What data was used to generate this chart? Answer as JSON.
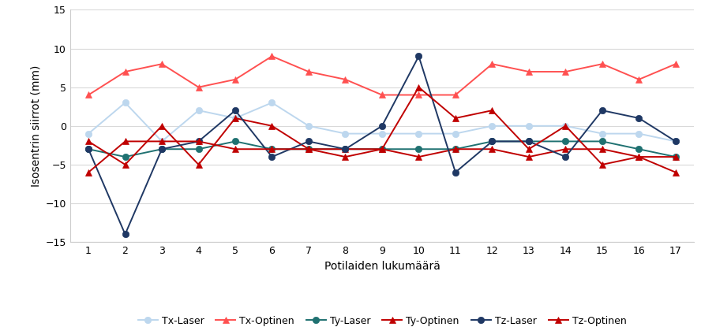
{
  "x": [
    1,
    2,
    3,
    4,
    5,
    6,
    7,
    8,
    9,
    10,
    11,
    12,
    13,
    14,
    15,
    16,
    17
  ],
  "Tx_Laser": [
    -1,
    3,
    -2,
    2,
    1,
    3,
    0,
    -1,
    -1,
    -1,
    -1,
    0,
    0,
    0,
    -1,
    -1,
    -2
  ],
  "Tx_Optinen": [
    4,
    7,
    8,
    5,
    6,
    9,
    7,
    6,
    4,
    4,
    4,
    8,
    7,
    7,
    8,
    6,
    8
  ],
  "Ty_Laser": [
    -3,
    -4,
    -3,
    -3,
    -2,
    -3,
    -3,
    -3,
    -3,
    -3,
    -3,
    -2,
    -2,
    -2,
    -2,
    -3,
    -4
  ],
  "Ty_Optinen": [
    -2,
    -5,
    0,
    -5,
    1,
    0,
    -3,
    -3,
    -3,
    -4,
    -3,
    -3,
    -4,
    -3,
    -3,
    -4,
    -4
  ],
  "Tz_Laser": [
    -3,
    -14,
    -3,
    -2,
    2,
    -4,
    -2,
    -3,
    0,
    9,
    -6,
    -2,
    -2,
    -4,
    2,
    1,
    -2
  ],
  "Tz_Optinen": [
    -6,
    -2,
    -2,
    -2,
    -3,
    -3,
    -3,
    -4,
    -3,
    5,
    1,
    2,
    -3,
    0,
    -5,
    -4,
    -6
  ],
  "ylim": [
    -15,
    15
  ],
  "yticks": [
    -15,
    -10,
    -5,
    0,
    5,
    10,
    15
  ],
  "xlabel": "Potilaiden lukumäärä",
  "ylabel": "Isosentrin siirrot (mm)",
  "Tx_Laser_color": "#BDD7EE",
  "Tx_Optinen_color": "#FF5050",
  "Ty_Laser_color": "#1F7171",
  "Ty_Optinen_color": "#C00000",
  "Tz_Laser_color": "#1F3864",
  "Tz_Optinen_color": "#C00000",
  "bg_color": "#FFFFFF",
  "grid_color": "#D9D9D9",
  "legend_labels": [
    "Tx-Laser",
    "Tx-Optinen",
    "Ty-Laser",
    "Ty-Optinen",
    "Tz-Laser",
    "Tz-Optinen"
  ]
}
